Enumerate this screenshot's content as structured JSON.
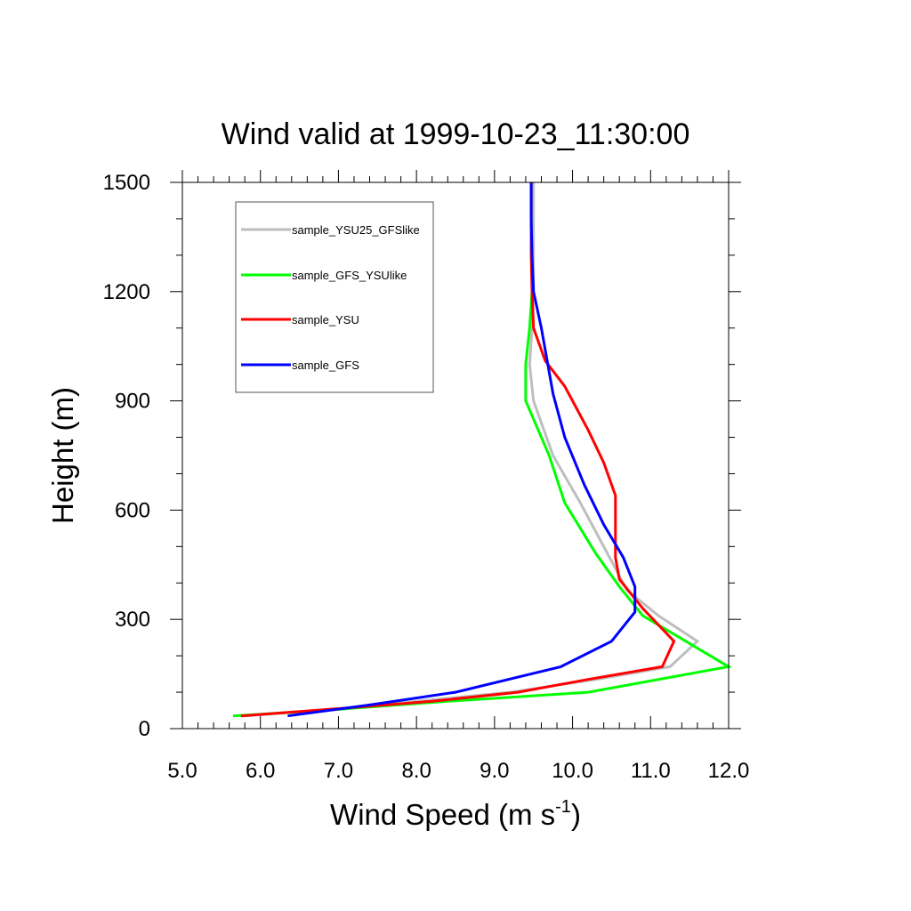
{
  "chart_data": {
    "type": "line",
    "title": "Wind valid at 1999-10-23_11:30:00",
    "xlabel": "Wind Speed (m s",
    "xlabel_superscript": "-1",
    "xlabel_suffix": ")",
    "ylabel": "Height (m)",
    "xlim": [
      5.0,
      12.0
    ],
    "ylim": [
      0,
      1500
    ],
    "xticks": [
      5.0,
      6.0,
      7.0,
      8.0,
      9.0,
      10.0,
      11.0,
      12.0
    ],
    "xtick_labels": [
      "5.0",
      "6.0",
      "7.0",
      "8.0",
      "9.0",
      "10.0",
      "11.0",
      "12.0"
    ],
    "yticks": [
      0,
      300,
      600,
      900,
      1200,
      1500
    ],
    "ytick_labels": [
      "0",
      "300",
      "600",
      "900",
      "1200",
      "1500"
    ],
    "grid": false,
    "legend_position": "top-left",
    "series": [
      {
        "name": "sample_YSU25_GFSlike",
        "color": "#bebebe",
        "points": [
          [
            5.8,
            35
          ],
          [
            7.0,
            55
          ],
          [
            8.0,
            75
          ],
          [
            9.2,
            100
          ],
          [
            10.3,
            135
          ],
          [
            11.25,
            170
          ],
          [
            11.6,
            240
          ],
          [
            11.1,
            310
          ],
          [
            10.7,
            380
          ],
          [
            10.45,
            480
          ],
          [
            10.1,
            620
          ],
          [
            9.75,
            750
          ],
          [
            9.5,
            900
          ],
          [
            9.45,
            1000
          ],
          [
            9.48,
            1100
          ],
          [
            9.5,
            1200
          ],
          [
            9.5,
            1300
          ],
          [
            9.5,
            1400
          ],
          [
            9.5,
            1500
          ]
        ]
      },
      {
        "name": "sample_GFS_YSUlike",
        "color": "#00ff00",
        "points": [
          [
            5.65,
            35
          ],
          [
            6.8,
            50
          ],
          [
            8.4,
            75
          ],
          [
            10.2,
            100
          ],
          [
            12.0,
            170
          ],
          [
            10.9,
            310
          ],
          [
            10.6,
            390
          ],
          [
            10.3,
            480
          ],
          [
            9.9,
            620
          ],
          [
            9.7,
            750
          ],
          [
            9.4,
            900
          ],
          [
            9.4,
            1000
          ],
          [
            9.45,
            1100
          ],
          [
            9.48,
            1200
          ],
          [
            9.48,
            1300
          ],
          [
            9.47,
            1400
          ],
          [
            9.47,
            1500
          ]
        ]
      },
      {
        "name": "sample_YSU",
        "color": "#ff0000",
        "points": [
          [
            5.75,
            35
          ],
          [
            7.0,
            55
          ],
          [
            8.2,
            75
          ],
          [
            9.3,
            100
          ],
          [
            10.2,
            135
          ],
          [
            11.15,
            170
          ],
          [
            11.3,
            240
          ],
          [
            10.9,
            330
          ],
          [
            10.6,
            410
          ],
          [
            10.55,
            470
          ],
          [
            10.55,
            640
          ],
          [
            10.4,
            730
          ],
          [
            10.2,
            820
          ],
          [
            9.9,
            940
          ],
          [
            9.65,
            1010
          ],
          [
            9.5,
            1100
          ],
          [
            9.48,
            1200
          ],
          [
            9.47,
            1300
          ],
          [
            9.47,
            1400
          ],
          [
            9.47,
            1500
          ]
        ]
      },
      {
        "name": "sample_GFS",
        "color": "#0000ff",
        "points": [
          [
            6.35,
            35
          ],
          [
            7.4,
            65
          ],
          [
            8.5,
            100
          ],
          [
            9.85,
            170
          ],
          [
            10.5,
            240
          ],
          [
            10.8,
            320
          ],
          [
            10.8,
            390
          ],
          [
            10.65,
            470
          ],
          [
            10.4,
            560
          ],
          [
            10.15,
            670
          ],
          [
            9.9,
            800
          ],
          [
            9.75,
            920
          ],
          [
            9.6,
            1100
          ],
          [
            9.5,
            1200
          ],
          [
            9.48,
            1300
          ],
          [
            9.47,
            1400
          ],
          [
            9.47,
            1500
          ]
        ]
      }
    ]
  }
}
